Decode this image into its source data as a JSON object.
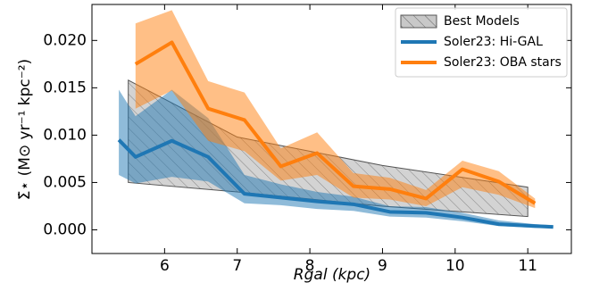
{
  "chart_data": {
    "type": "line",
    "xlabel": "Rgal (kpc)",
    "ylabel": "Σ̇⋆ (M⊙ yr⁻¹ kpc⁻²)",
    "xlim": [
      5.0,
      11.6
    ],
    "ylim": [
      -0.0025,
      0.0238
    ],
    "xticks": [
      6,
      7,
      8,
      9,
      10,
      11
    ],
    "yticks": [
      {
        "value": 0,
        "label": "0.000"
      },
      0.005,
      {
        "value": 0.01,
        "label": "0.010"
      },
      0.015,
      {
        "value": 0.02,
        "label": "0.020"
      }
    ],
    "legend": "upper right",
    "series": [
      {
        "name": "Best Models",
        "color": "#999999",
        "x": [
          5.5,
          7,
          9,
          11
        ],
        "lower": [
          0.005,
          0.004,
          0.0025,
          0.0014
        ],
        "upper": [
          0.0158,
          0.0098,
          0.0068,
          0.0045
        ]
      },
      {
        "name": "Soler23: Hi-GAL",
        "color": "#1f77b4",
        "x": [
          5.37,
          5.6,
          6.1,
          6.6,
          7.1,
          7.6,
          8.1,
          8.6,
          9.1,
          9.6,
          10.1,
          10.6,
          11.1,
          11.35
        ],
        "values": [
          0.0095,
          0.0077,
          0.0094,
          0.0077,
          0.0038,
          0.0034,
          0.003,
          0.0027,
          0.0019,
          0.0018,
          0.0013,
          0.0006,
          0.0004,
          0.0003
        ],
        "lower": [
          0.0058,
          0.0049,
          0.0056,
          0.0051,
          0.0028,
          0.0026,
          0.0022,
          0.002,
          0.0014,
          0.0013,
          0.0009,
          0.0004,
          0.0002,
          0.0002
        ],
        "upper": [
          0.0148,
          0.012,
          0.0148,
          0.0118,
          0.0058,
          0.0048,
          0.004,
          0.0035,
          0.0025,
          0.0024,
          0.0018,
          0.001,
          0.0006,
          0.0005
        ]
      },
      {
        "name": "Soler23: OBA stars",
        "color": "#ff7f0e",
        "x": [
          5.6,
          6.1,
          6.6,
          7.1,
          7.6,
          8.1,
          8.6,
          9.1,
          9.6,
          10.1,
          10.6,
          11.1
        ],
        "values": [
          0.0175,
          0.0198,
          0.0128,
          0.0116,
          0.0067,
          0.0081,
          0.0046,
          0.0043,
          0.0033,
          0.0064,
          0.0051,
          0.0028
        ],
        "lower": [
          0.0128,
          0.0147,
          0.0094,
          0.0083,
          0.0052,
          0.0058,
          0.0034,
          0.0032,
          0.0025,
          0.0045,
          0.0037,
          0.0023
        ],
        "upper": [
          0.0218,
          0.0232,
          0.0157,
          0.0145,
          0.0086,
          0.0103,
          0.006,
          0.0055,
          0.0042,
          0.0073,
          0.0062,
          0.0033
        ]
      }
    ]
  }
}
